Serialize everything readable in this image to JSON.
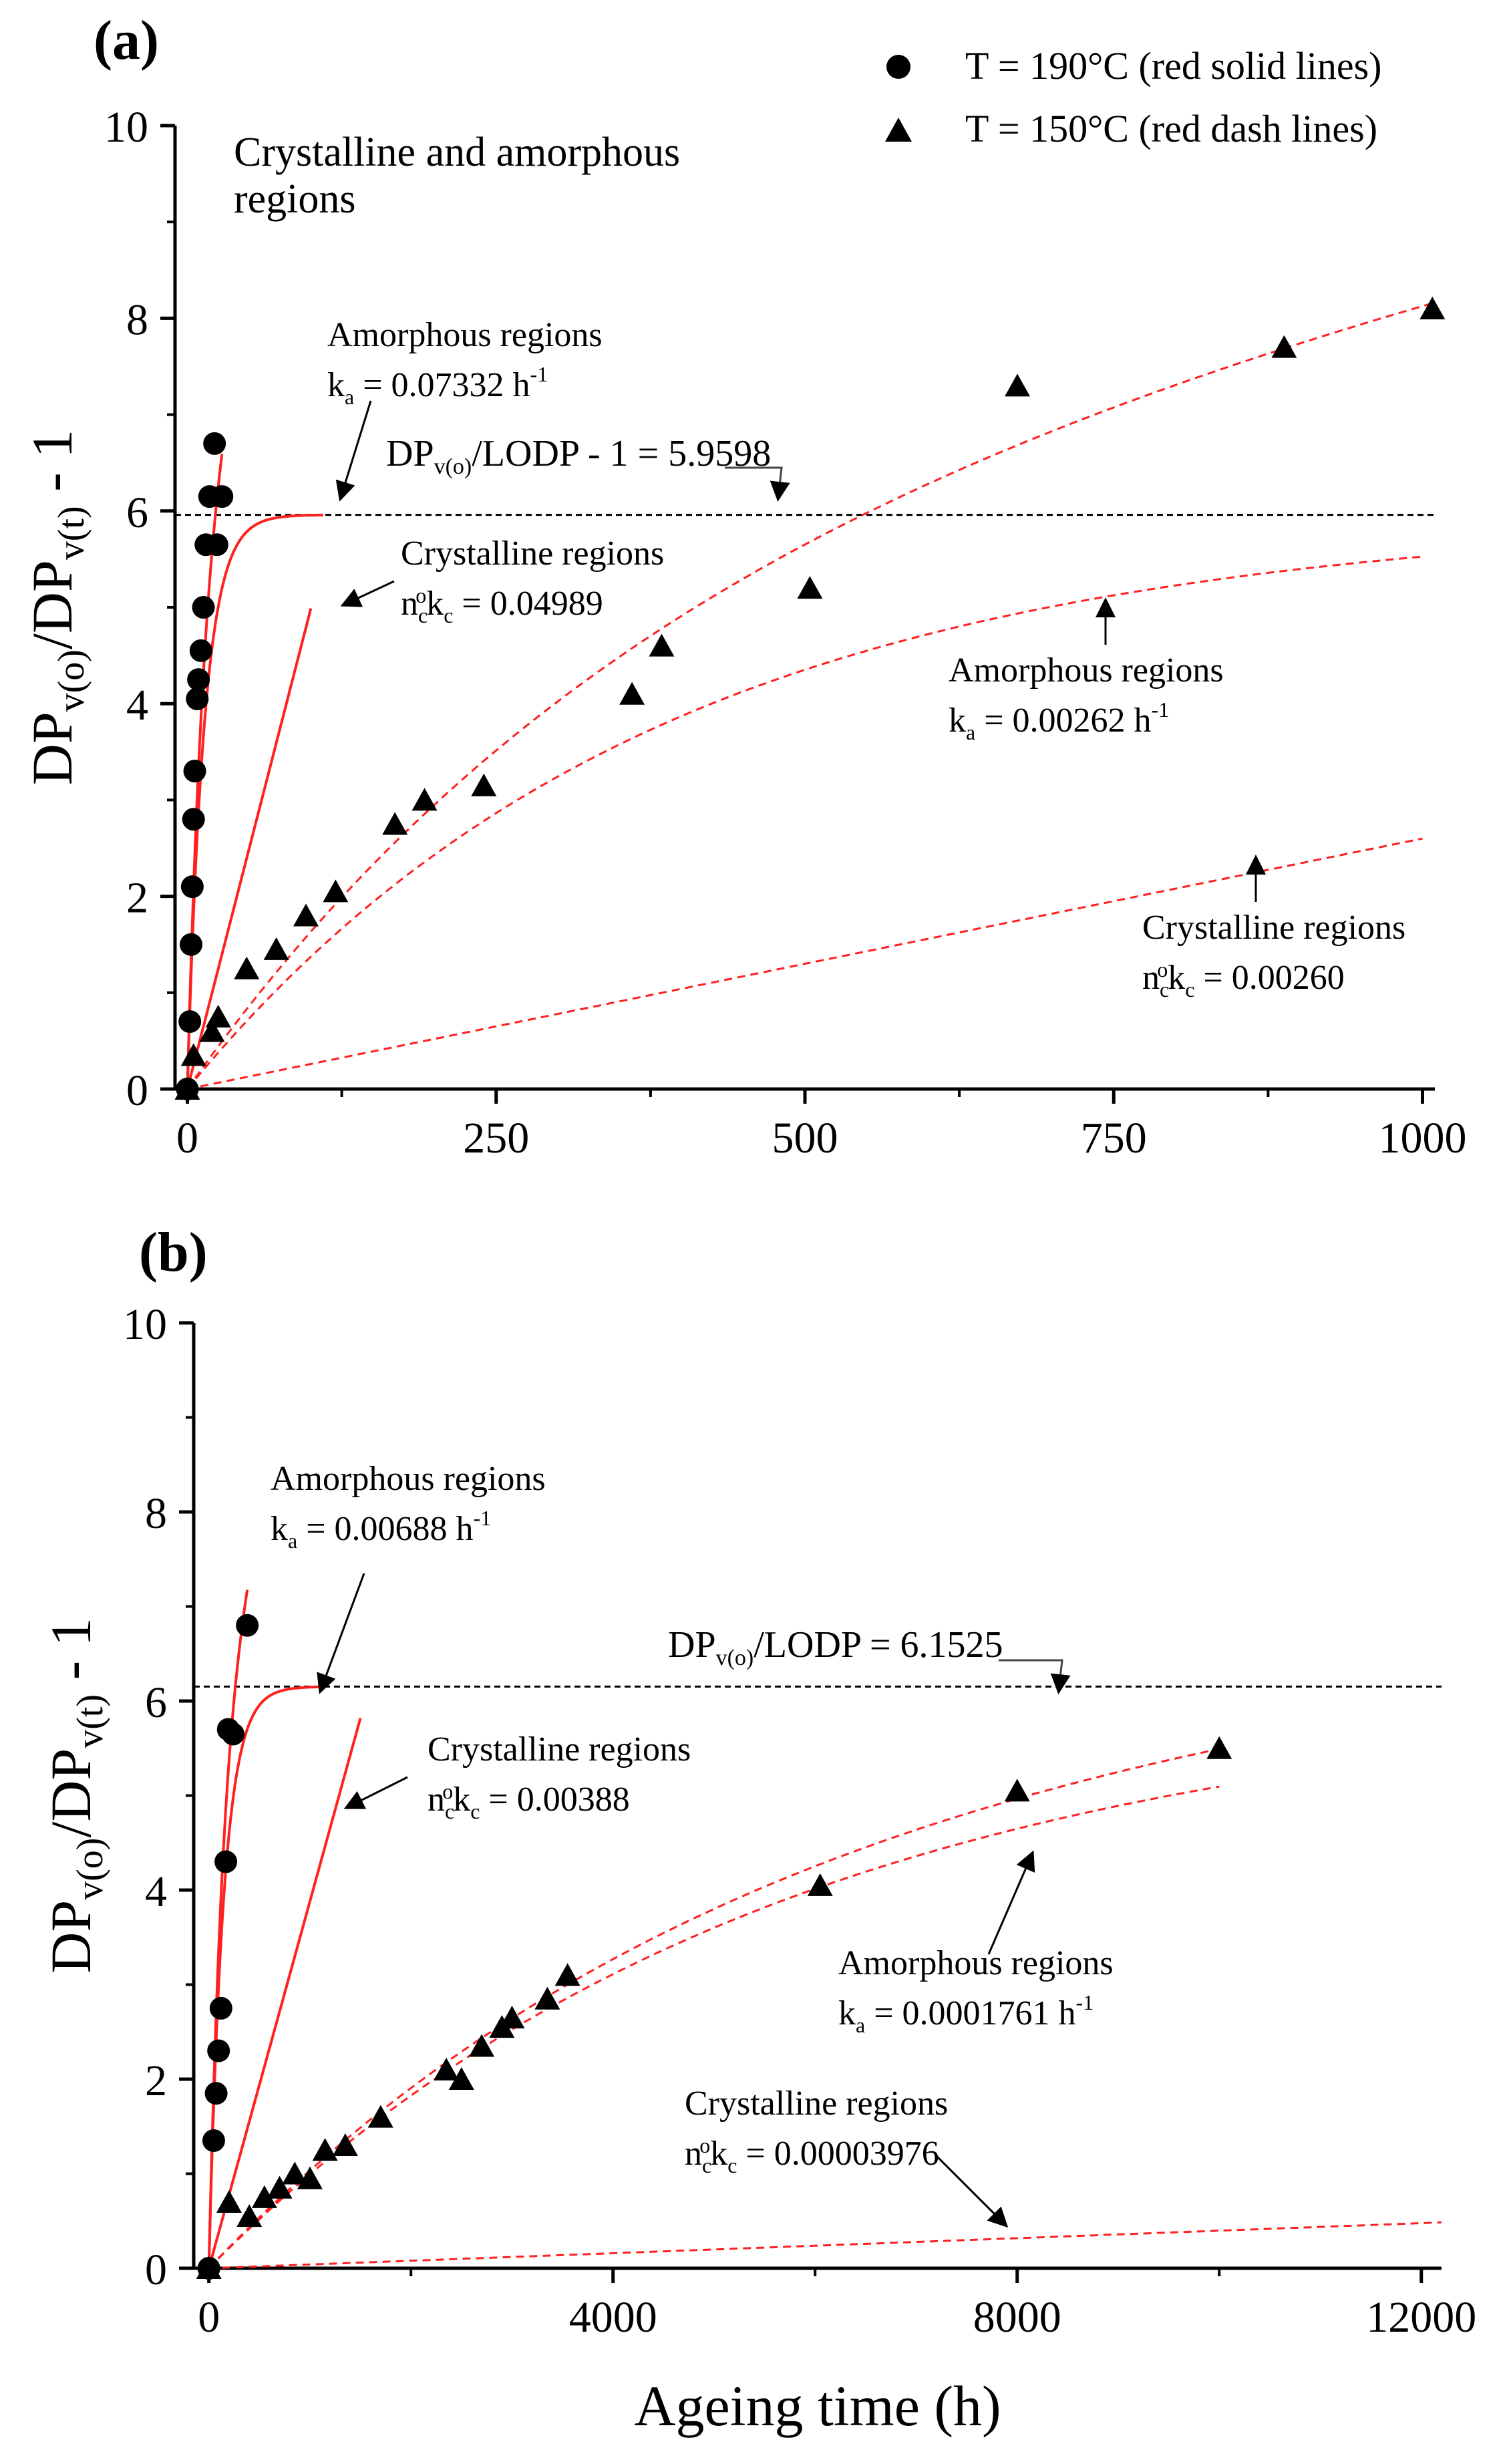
{
  "chart_data": [
    {
      "type": "scatter",
      "panel_label": "(a)",
      "title": "Crystalline and amorphous regions",
      "xlabel": "",
      "ylabel": "DPv(o)/DPv(t) - 1",
      "xlim": [
        -10,
        1010
      ],
      "ylim": [
        0,
        10
      ],
      "xticks": [
        0,
        250,
        500,
        750,
        1000
      ],
      "yticks": [
        0,
        2,
        4,
        6,
        8,
        10
      ],
      "legend": [
        {
          "marker": "circle",
          "label": "T = 190°C (red solid lines)"
        },
        {
          "marker": "triangle",
          "label": "T = 150°C (red dash lines)"
        }
      ],
      "series": [
        {
          "name": "T = 190°C",
          "marker": "circle",
          "x": [
            0,
            2,
            3,
            4,
            5,
            6,
            8,
            9,
            11,
            13,
            15,
            18,
            22,
            24,
            28
          ],
          "y": [
            0,
            0.7,
            1.5,
            2.1,
            2.8,
            3.3,
            4.05,
            4.25,
            4.55,
            5.0,
            5.65,
            6.15,
            6.7,
            5.65,
            6.15
          ]
        },
        {
          "name": "T = 150°C",
          "marker": "triangle",
          "x": [
            0,
            5,
            20,
            25,
            48,
            72,
            96,
            120,
            168,
            192,
            240,
            360,
            384,
            504,
            672,
            888,
            1008
          ],
          "y": [
            0,
            0.35,
            0.6,
            0.75,
            1.25,
            1.45,
            1.8,
            2.05,
            2.75,
            3.0,
            3.15,
            4.1,
            4.6,
            5.2,
            7.3,
            7.7,
            8.1
          ]
        }
      ],
      "models": [
        {
          "name": "190 amorphous",
          "style": "solid",
          "kind": "saturation",
          "k": 0.07332,
          "plateau": 5.9598,
          "xmax": 110
        },
        {
          "name": "190 crystalline",
          "style": "solid",
          "kind": "linear",
          "k": 0.04989,
          "plateau": 0,
          "xmax": 100
        },
        {
          "name": "190 total",
          "style": "solid",
          "kind": "sum",
          "k": 0.07332,
          "plateau": 5.9598,
          "k2": 0.04989,
          "xmax": 28
        },
        {
          "name": "150 amorphous",
          "style": "dashed",
          "kind": "saturation",
          "k": 0.00262,
          "plateau": 5.9598,
          "xmax": 1000
        },
        {
          "name": "150 crystalline",
          "style": "dashed",
          "kind": "linear",
          "k": 0.0026,
          "plateau": 0,
          "xmax": 1000
        },
        {
          "name": "150 total",
          "style": "dashed",
          "kind": "sum",
          "k": 0.00262,
          "plateau": 5.9598,
          "k2": 0.0026,
          "xmax": 1008
        }
      ],
      "reference_line": {
        "y": 5.9598,
        "label_main": "DP",
        "label_sub": "v(o)",
        "label_rest": "/LODP - 1 = 5.9598"
      },
      "annotations": [
        {
          "id": "a1",
          "line1": "Amorphous regions",
          "sym": "k",
          "sub": "a",
          "sup": "",
          "value": " = 0.07332 h",
          "unit_sup": "-1"
        },
        {
          "id": "a2",
          "line1": "Crystalline regions",
          "sym": "n",
          "sub": "c",
          "sup": "o",
          "sym2": "k",
          "sub2": "c",
          "value": " = 0.04989",
          "unit_sup": ""
        },
        {
          "id": "a3",
          "line1": "Amorphous regions",
          "sym": "k",
          "sub": "a",
          "sup": "",
          "value": " = 0.00262 h",
          "unit_sup": "-1"
        },
        {
          "id": "a4",
          "line1": "Crystalline regions",
          "sym": "n",
          "sub": "c",
          "sup": "o",
          "sym2": "k",
          "sub2": "c",
          "value": " = 0.00260",
          "unit_sup": ""
        }
      ]
    },
    {
      "type": "scatter",
      "panel_label": "(b)",
      "title": "",
      "xlabel": "Ageing time (h)",
      "ylabel": "DPv(o)/DPv(t) - 1",
      "xlim": [
        -150,
        12200
      ],
      "ylim": [
        0,
        10
      ],
      "xticks": [
        0,
        4000,
        8000,
        12000
      ],
      "yticks": [
        0,
        2,
        4,
        6,
        8,
        10
      ],
      "series": [
        {
          "name": "T = 190°C",
          "marker": "circle",
          "x": [
            0,
            48,
            72,
            96,
            120,
            168,
            192,
            240,
            380
          ],
          "y": [
            0,
            1.35,
            1.85,
            2.3,
            2.75,
            4.3,
            5.7,
            5.65,
            6.8
          ]
        },
        {
          "name": "T = 150°C",
          "marker": "triangle",
          "x": [
            0,
            200,
            400,
            550,
            700,
            850,
            1000,
            1150,
            1350,
            1700,
            2350,
            2500,
            2700,
            2900,
            3000,
            3350,
            3550,
            6050,
            8000,
            10000
          ],
          "y": [
            0,
            0.7,
            0.55,
            0.75,
            0.85,
            1.0,
            0.95,
            1.25,
            1.3,
            1.6,
            2.1,
            2.0,
            2.35,
            2.55,
            2.65,
            2.85,
            3.1,
            4.05,
            5.05,
            5.5
          ]
        }
      ],
      "models": [
        {
          "name": "190 amorphous",
          "style": "solid",
          "kind": "saturation",
          "k": 0.00688,
          "plateau": 6.1525,
          "xmax": 1100
        },
        {
          "name": "190 crystalline",
          "style": "solid",
          "kind": "linear",
          "k": 0.00388,
          "plateau": 0,
          "xmax": 1500
        },
        {
          "name": "190 total",
          "style": "solid",
          "kind": "sum",
          "k": 0.00688,
          "plateau": 6.1525,
          "k2": 0.00388,
          "xmax": 380
        },
        {
          "name": "150 amorphous",
          "style": "dashed",
          "kind": "saturation",
          "k": 0.0001761,
          "plateau": 6.1525,
          "xmax": 10000
        },
        {
          "name": "150 crystalline",
          "style": "dashed",
          "kind": "linear",
          "k": 3.976e-05,
          "plateau": 0,
          "xmax": 12200
        },
        {
          "name": "150 total",
          "style": "dashed",
          "kind": "sum",
          "k": 0.0001761,
          "plateau": 6.1525,
          "k2": 3.976e-05,
          "xmax": 10000
        }
      ],
      "reference_line": {
        "y": 6.1525,
        "label_main": "DP",
        "label_sub": "v(o)",
        "label_rest": "/LODP = 6.1525"
      },
      "annotations": [
        {
          "id": "b1",
          "line1": "Amorphous regions",
          "sym": "k",
          "sub": "a",
          "sup": "",
          "value": " = 0.00688 h",
          "unit_sup": "-1"
        },
        {
          "id": "b2",
          "line1": "Crystalline regions",
          "sym": "n",
          "sub": "c",
          "sup": "o",
          "sym2": "k",
          "sub2": "c",
          "value": " = 0.00388",
          "unit_sup": ""
        },
        {
          "id": "b3",
          "line1": "Amorphous regions",
          "sym": "k",
          "sub": "a",
          "sup": "",
          "value": " = 0.0001761 h",
          "unit_sup": "-1"
        },
        {
          "id": "b4",
          "line1": "Crystalline regions",
          "sym": "n",
          "sub": "c",
          "sup": "o",
          "sym2": "k",
          "sub2": "c",
          "value": " = 0.00003976",
          "unit_sup": ""
        }
      ]
    }
  ],
  "colors": {
    "axis": "#000000",
    "fit": "#ff2020",
    "reference": "#000000",
    "marker": "#000000"
  }
}
